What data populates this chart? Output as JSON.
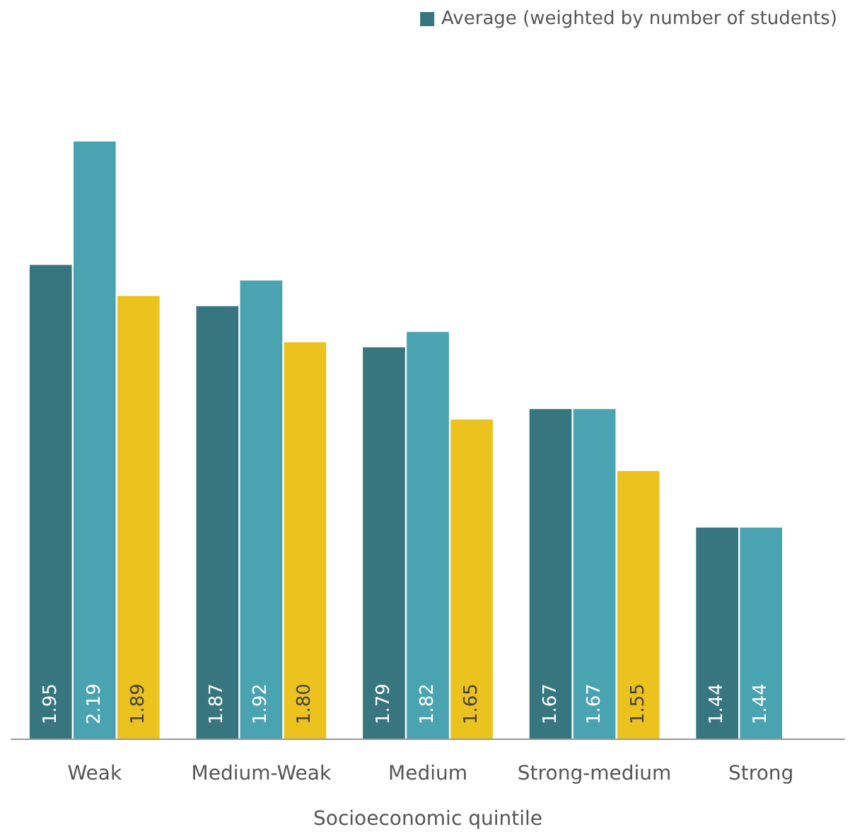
{
  "chart_data": {
    "type": "bar",
    "xlabel": "Socioeconomic quintile",
    "categories": [
      "Weak",
      "Medium-Weak",
      "Medium",
      "Strong-medium",
      "Strong"
    ],
    "series": [
      {
        "name": "Average (weighted by number of students)",
        "color": "#37767f",
        "values": [
          1.95,
          1.87,
          1.79,
          1.67,
          1.44
        ],
        "value_labels": [
          "1.95",
          "1.87",
          "1.79",
          "1.67",
          "1.44"
        ]
      },
      {
        "color": "#4aa3b0",
        "values": [
          2.19,
          1.92,
          1.82,
          1.67,
          1.44
        ],
        "value_labels": [
          "2.19",
          "1.92",
          "1.82",
          "1.67",
          "1.44"
        ]
      },
      {
        "color": "#ecc21f",
        "values": [
          1.89,
          1.8,
          1.65,
          1.55,
          null
        ],
        "value_labels": [
          "1.89",
          "1.80",
          "1.65",
          "1.55",
          null
        ]
      }
    ],
    "ylim": [
      1.03,
      2.19
    ],
    "tick_labels": "x",
    "grid": false,
    "legend": "top right"
  }
}
